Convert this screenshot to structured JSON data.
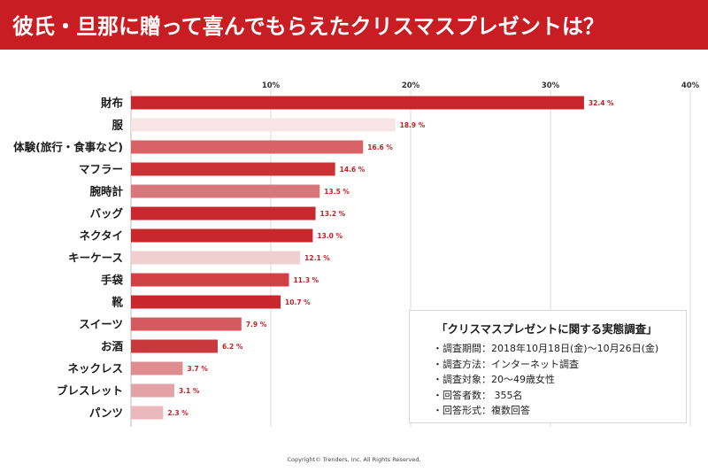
{
  "title": "彼氏・旦那に贈って喜んでもらえたクリスマスプレゼントは？",
  "colors": {
    "accent": "#c81e23",
    "grid": "#dddddd",
    "text": "#1a1a1a"
  },
  "chart_data": {
    "type": "bar",
    "orientation": "horizontal",
    "title": "彼氏・旦那に贈って喜んでもらえたクリスマスプレゼントは？",
    "xlim": [
      0,
      40
    ],
    "ticks": [
      10,
      20,
      30,
      40
    ],
    "tick_labels": [
      "10%",
      "20%",
      "30%",
      "40%"
    ],
    "grid": true,
    "categories": [
      "財布",
      "服",
      "体験(旅行・食事など)",
      "マフラー",
      "腕時計",
      "バッグ",
      "ネクタイ",
      "キーケース",
      "手袋",
      "靴",
      "スイーツ",
      "お酒",
      "ネックレス",
      "ブレスレット",
      "パンツ"
    ],
    "values": [
      32.4,
      18.9,
      16.6,
      14.6,
      13.5,
      13.2,
      13.0,
      12.1,
      11.3,
      10.7,
      7.9,
      6.2,
      3.7,
      3.1,
      2.3
    ],
    "value_labels": [
      "32.4 %",
      "18.9 %",
      "16.6 %",
      "14.6 %",
      "13.5 %",
      "13.2 %",
      "13.0 %",
      "12.1 %",
      "11.3 %",
      "10.7 %",
      "7.9 %",
      "6.2 %",
      "3.7 %",
      "3.1 %",
      "2.3 %"
    ],
    "bar_colors": [
      "#c8252c",
      "#f6e4e6",
      "#d96266",
      "#cb3135",
      "#d8787c",
      "#c8292e",
      "#c8282c",
      "#f0cfd1",
      "#d14045",
      "#c8272c",
      "#d55a5f",
      "#c8393d",
      "#df8c90",
      "#e3a3a6",
      "#ebb9bc"
    ]
  },
  "survey": {
    "title": "「クリスマスプレゼントに関する実態調査」",
    "items": [
      "調査期間：2018年10月18日(金)〜10月26日(金)",
      "調査方法：インターネット調査",
      "調査対象：20〜49歳女性",
      "回答者数： 355名",
      "回答形式：複数回答"
    ]
  },
  "copyright": "Copyright© Trenders, Inc. All Rights Reserved."
}
